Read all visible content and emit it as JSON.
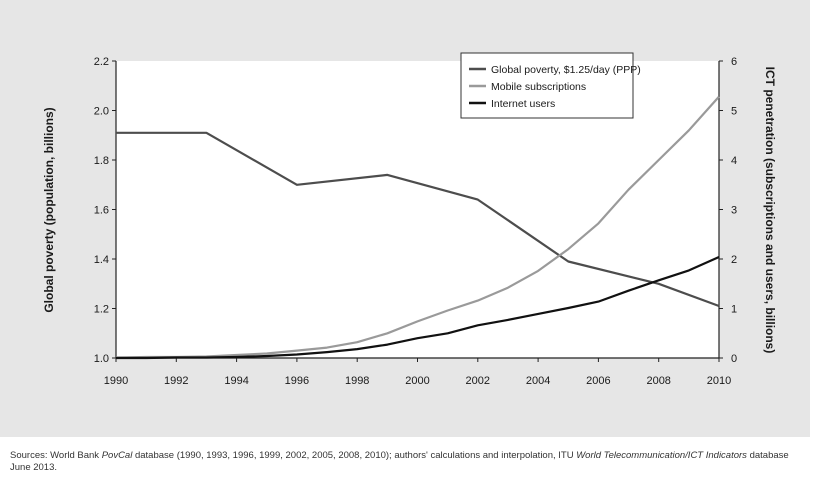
{
  "chart_data": {
    "type": "line",
    "y_left_label": "Global poverty (population, billions)",
    "y_right_label": "ICT penetration (subscriptions and users, billions)",
    "y_left_lim": [
      1.0,
      2.2
    ],
    "y_left_ticks": [
      "1.0",
      "1.2",
      "1.4",
      "1.6",
      "1.8",
      "2.0",
      "2.2"
    ],
    "y_right_lim": [
      0,
      6
    ],
    "y_right_ticks": [
      "0",
      "1",
      "2",
      "3",
      "4",
      "5",
      "6"
    ],
    "x_lim": [
      1990,
      2010
    ],
    "x_ticks": [
      "1990",
      "1992",
      "1994",
      "1996",
      "1998",
      "2000",
      "2002",
      "2004",
      "2006",
      "2008",
      "2010"
    ],
    "legend_position": "top-right",
    "series": [
      {
        "name": "Global poverty, $1.25/day (PPP)",
        "axis": "left",
        "color": "#4d4d4d",
        "x": [
          1990,
          1993,
          1996,
          1999,
          2002,
          2005,
          2008,
          2010
        ],
        "y": [
          1.91,
          1.91,
          1.7,
          1.74,
          1.64,
          1.39,
          1.3,
          1.21
        ]
      },
      {
        "name": "Mobile subscriptions",
        "axis": "right",
        "color": "#9a9a9a",
        "x": [
          1990,
          1991,
          1992,
          1993,
          1994,
          1995,
          1996,
          1997,
          1998,
          1999,
          2000,
          2001,
          2002,
          2003,
          2004,
          2005,
          2006,
          2007,
          2008,
          2009,
          2010
        ],
        "y": [
          0.01,
          0.02,
          0.02,
          0.03,
          0.06,
          0.09,
          0.15,
          0.21,
          0.32,
          0.5,
          0.74,
          0.96,
          1.16,
          1.42,
          1.76,
          2.2,
          2.72,
          3.4,
          4.0,
          4.6,
          5.28
        ]
      },
      {
        "name": "Internet users",
        "axis": "right",
        "color": "#111111",
        "x": [
          1990,
          1991,
          1992,
          1993,
          1994,
          1995,
          1996,
          1997,
          1998,
          1999,
          2000,
          2001,
          2002,
          2003,
          2004,
          2005,
          2006,
          2007,
          2008,
          2009,
          2010
        ],
        "y": [
          0.0,
          0.0,
          0.01,
          0.01,
          0.02,
          0.04,
          0.07,
          0.12,
          0.18,
          0.27,
          0.4,
          0.5,
          0.66,
          0.77,
          0.89,
          1.01,
          1.14,
          1.36,
          1.57,
          1.77,
          2.04
        ]
      }
    ]
  },
  "source": {
    "prefix": "Sources: World Bank ",
    "db1": "PovCal",
    "mid": " database (1990, 1993, 1996, 1999, 2002, 2005, 2008, 2010); authors' calculations and interpolation, ITU ",
    "db2": "World Telecommunication/ICT Indicators",
    "suffix": " database June 2013."
  }
}
